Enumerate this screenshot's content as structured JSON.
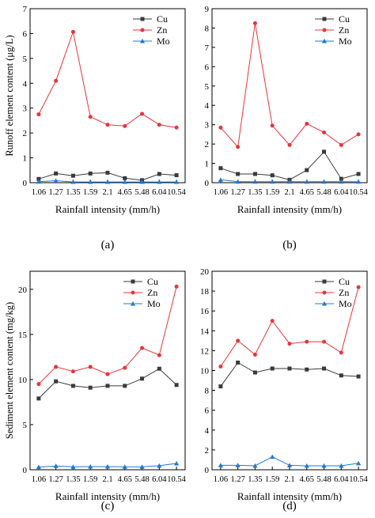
{
  "legend_labels": [
    "Cu",
    "Zn",
    "Mo"
  ],
  "colors": {
    "Cu": "#3a3a3a",
    "Zn": "#e8343a",
    "Mo": "#1f78d6"
  },
  "chart_data": [
    {
      "type": "line",
      "panel_label": "(a)",
      "xlabel": "Rainfall intensity (mm/h)",
      "ylabel": "Runoff element content (μg/L)",
      "categories": [
        "1.06",
        "1.27",
        "1.35",
        "1.59",
        "2.1",
        "4.65",
        "5.48",
        "6.04",
        "10.54"
      ],
      "ylim": [
        0,
        7
      ],
      "yticks": [
        0,
        1,
        2,
        3,
        4,
        5,
        6,
        7
      ],
      "legend": "top-right",
      "grid": false,
      "series": [
        {
          "name": "Cu",
          "values": [
            0.15,
            0.37,
            0.28,
            0.37,
            0.4,
            0.18,
            0.1,
            0.35,
            0.3
          ]
        },
        {
          "name": "Zn",
          "values": [
            2.75,
            4.1,
            6.07,
            2.65,
            2.33,
            2.28,
            2.77,
            2.33,
            2.22
          ]
        },
        {
          "name": "Mo",
          "values": [
            0.04,
            0.08,
            0.03,
            0.03,
            0.03,
            0.03,
            0.03,
            0.03,
            0.03
          ]
        }
      ]
    },
    {
      "type": "line",
      "panel_label": "(b)",
      "xlabel": "Rainfall intensity (mm/h)",
      "ylabel": "",
      "categories": [
        "1.06",
        "1.27",
        "1.35",
        "1.59",
        "2.1",
        "4.65",
        "5.48",
        "6.04",
        "10.54"
      ],
      "ylim": [
        0,
        9
      ],
      "yticks": [
        0,
        1,
        2,
        3,
        4,
        5,
        6,
        7,
        8,
        9
      ],
      "legend": "top-right",
      "grid": false,
      "series": [
        {
          "name": "Cu",
          "values": [
            0.75,
            0.45,
            0.45,
            0.38,
            0.15,
            0.65,
            1.6,
            0.2,
            0.45
          ]
        },
        {
          "name": "Zn",
          "values": [
            2.85,
            1.85,
            8.25,
            2.95,
            1.95,
            3.05,
            2.6,
            1.95,
            2.5
          ]
        },
        {
          "name": "Mo",
          "values": [
            0.15,
            0.05,
            0.05,
            0.05,
            0.05,
            0.05,
            0.05,
            0.05,
            0.05
          ]
        }
      ]
    },
    {
      "type": "line",
      "panel_label": "(c)",
      "xlabel": "Rainfall intensity (mm/h)",
      "ylabel": "Sediment element content (mg/kg)",
      "categories": [
        "1.06",
        "1.27",
        "1.35",
        "1.59",
        "2.1",
        "4.65",
        "5.48",
        "6.04",
        "10.54"
      ],
      "ylim": [
        0,
        22
      ],
      "yticks": [
        0,
        5,
        10,
        15,
        20
      ],
      "legend": "top-left",
      "grid": false,
      "series": [
        {
          "name": "Cu",
          "values": [
            7.9,
            9.8,
            9.3,
            9.1,
            9.3,
            9.3,
            10.1,
            11.2,
            9.4
          ]
        },
        {
          "name": "Zn",
          "values": [
            9.5,
            11.4,
            10.9,
            11.4,
            10.6,
            11.3,
            13.5,
            12.7,
            20.3
          ]
        },
        {
          "name": "Mo",
          "values": [
            0.3,
            0.42,
            0.32,
            0.35,
            0.35,
            0.32,
            0.32,
            0.45,
            0.7
          ]
        }
      ]
    },
    {
      "type": "line",
      "panel_label": "(d)",
      "xlabel": "Rainfall intensity (mm/h)",
      "ylabel": "",
      "categories": [
        "1.06",
        "1.27",
        "1.35",
        "1.59",
        "2.1",
        "4.65",
        "5.48",
        "6.04",
        "10.54"
      ],
      "ylim": [
        0,
        20
      ],
      "yticks": [
        0,
        2,
        4,
        6,
        8,
        10,
        12,
        14,
        16,
        18,
        20
      ],
      "legend": "top-right",
      "grid": false,
      "series": [
        {
          "name": "Cu",
          "values": [
            8.4,
            10.8,
            9.8,
            10.2,
            10.2,
            10.1,
            10.2,
            9.5,
            9.4
          ]
        },
        {
          "name": "Zn",
          "values": [
            10.4,
            13.0,
            11.6,
            15.0,
            12.7,
            12.9,
            12.9,
            11.8,
            18.4
          ]
        },
        {
          "name": "Mo",
          "values": [
            0.45,
            0.45,
            0.4,
            1.3,
            0.45,
            0.4,
            0.4,
            0.4,
            0.65
          ]
        }
      ]
    }
  ]
}
